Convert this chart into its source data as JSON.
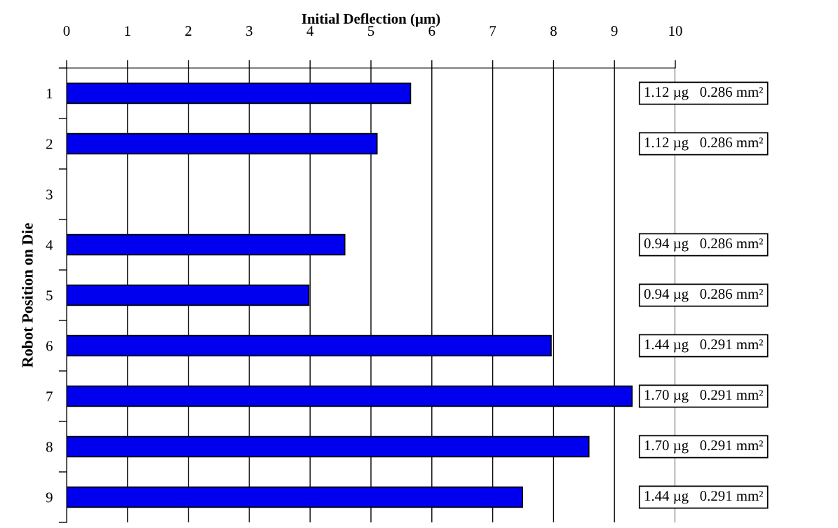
{
  "chart_data": {
    "type": "bar",
    "orientation": "horizontal",
    "xlabel": "Initial Deflection (µm)",
    "ylabel": "Robot Position on Die",
    "categories": [
      "1",
      "2",
      "3",
      "4",
      "5",
      "6",
      "7",
      "8",
      "9"
    ],
    "values": [
      5.65,
      5.1,
      null,
      4.57,
      3.98,
      7.96,
      9.29,
      8.58,
      7.49
    ],
    "color": "#0000ee",
    "xlim": [
      0,
      10
    ],
    "xticks": [
      0,
      1,
      2,
      3,
      4,
      5,
      6,
      7,
      8,
      9,
      10
    ],
    "grid": "x",
    "legend": false,
    "annotations": [
      "1.12 µg   0.286 mm²",
      "1.12 µg   0.286 mm²",
      "0.94 µg   0.286 mm²",
      "0.94 µg   0.286 mm²",
      "1.44 µg   0.291 mm²",
      "1.70 µg   0.291 mm²",
      "1.70 µg   0.291 mm²",
      "1.44 µg   0.291 mm²"
    ]
  }
}
